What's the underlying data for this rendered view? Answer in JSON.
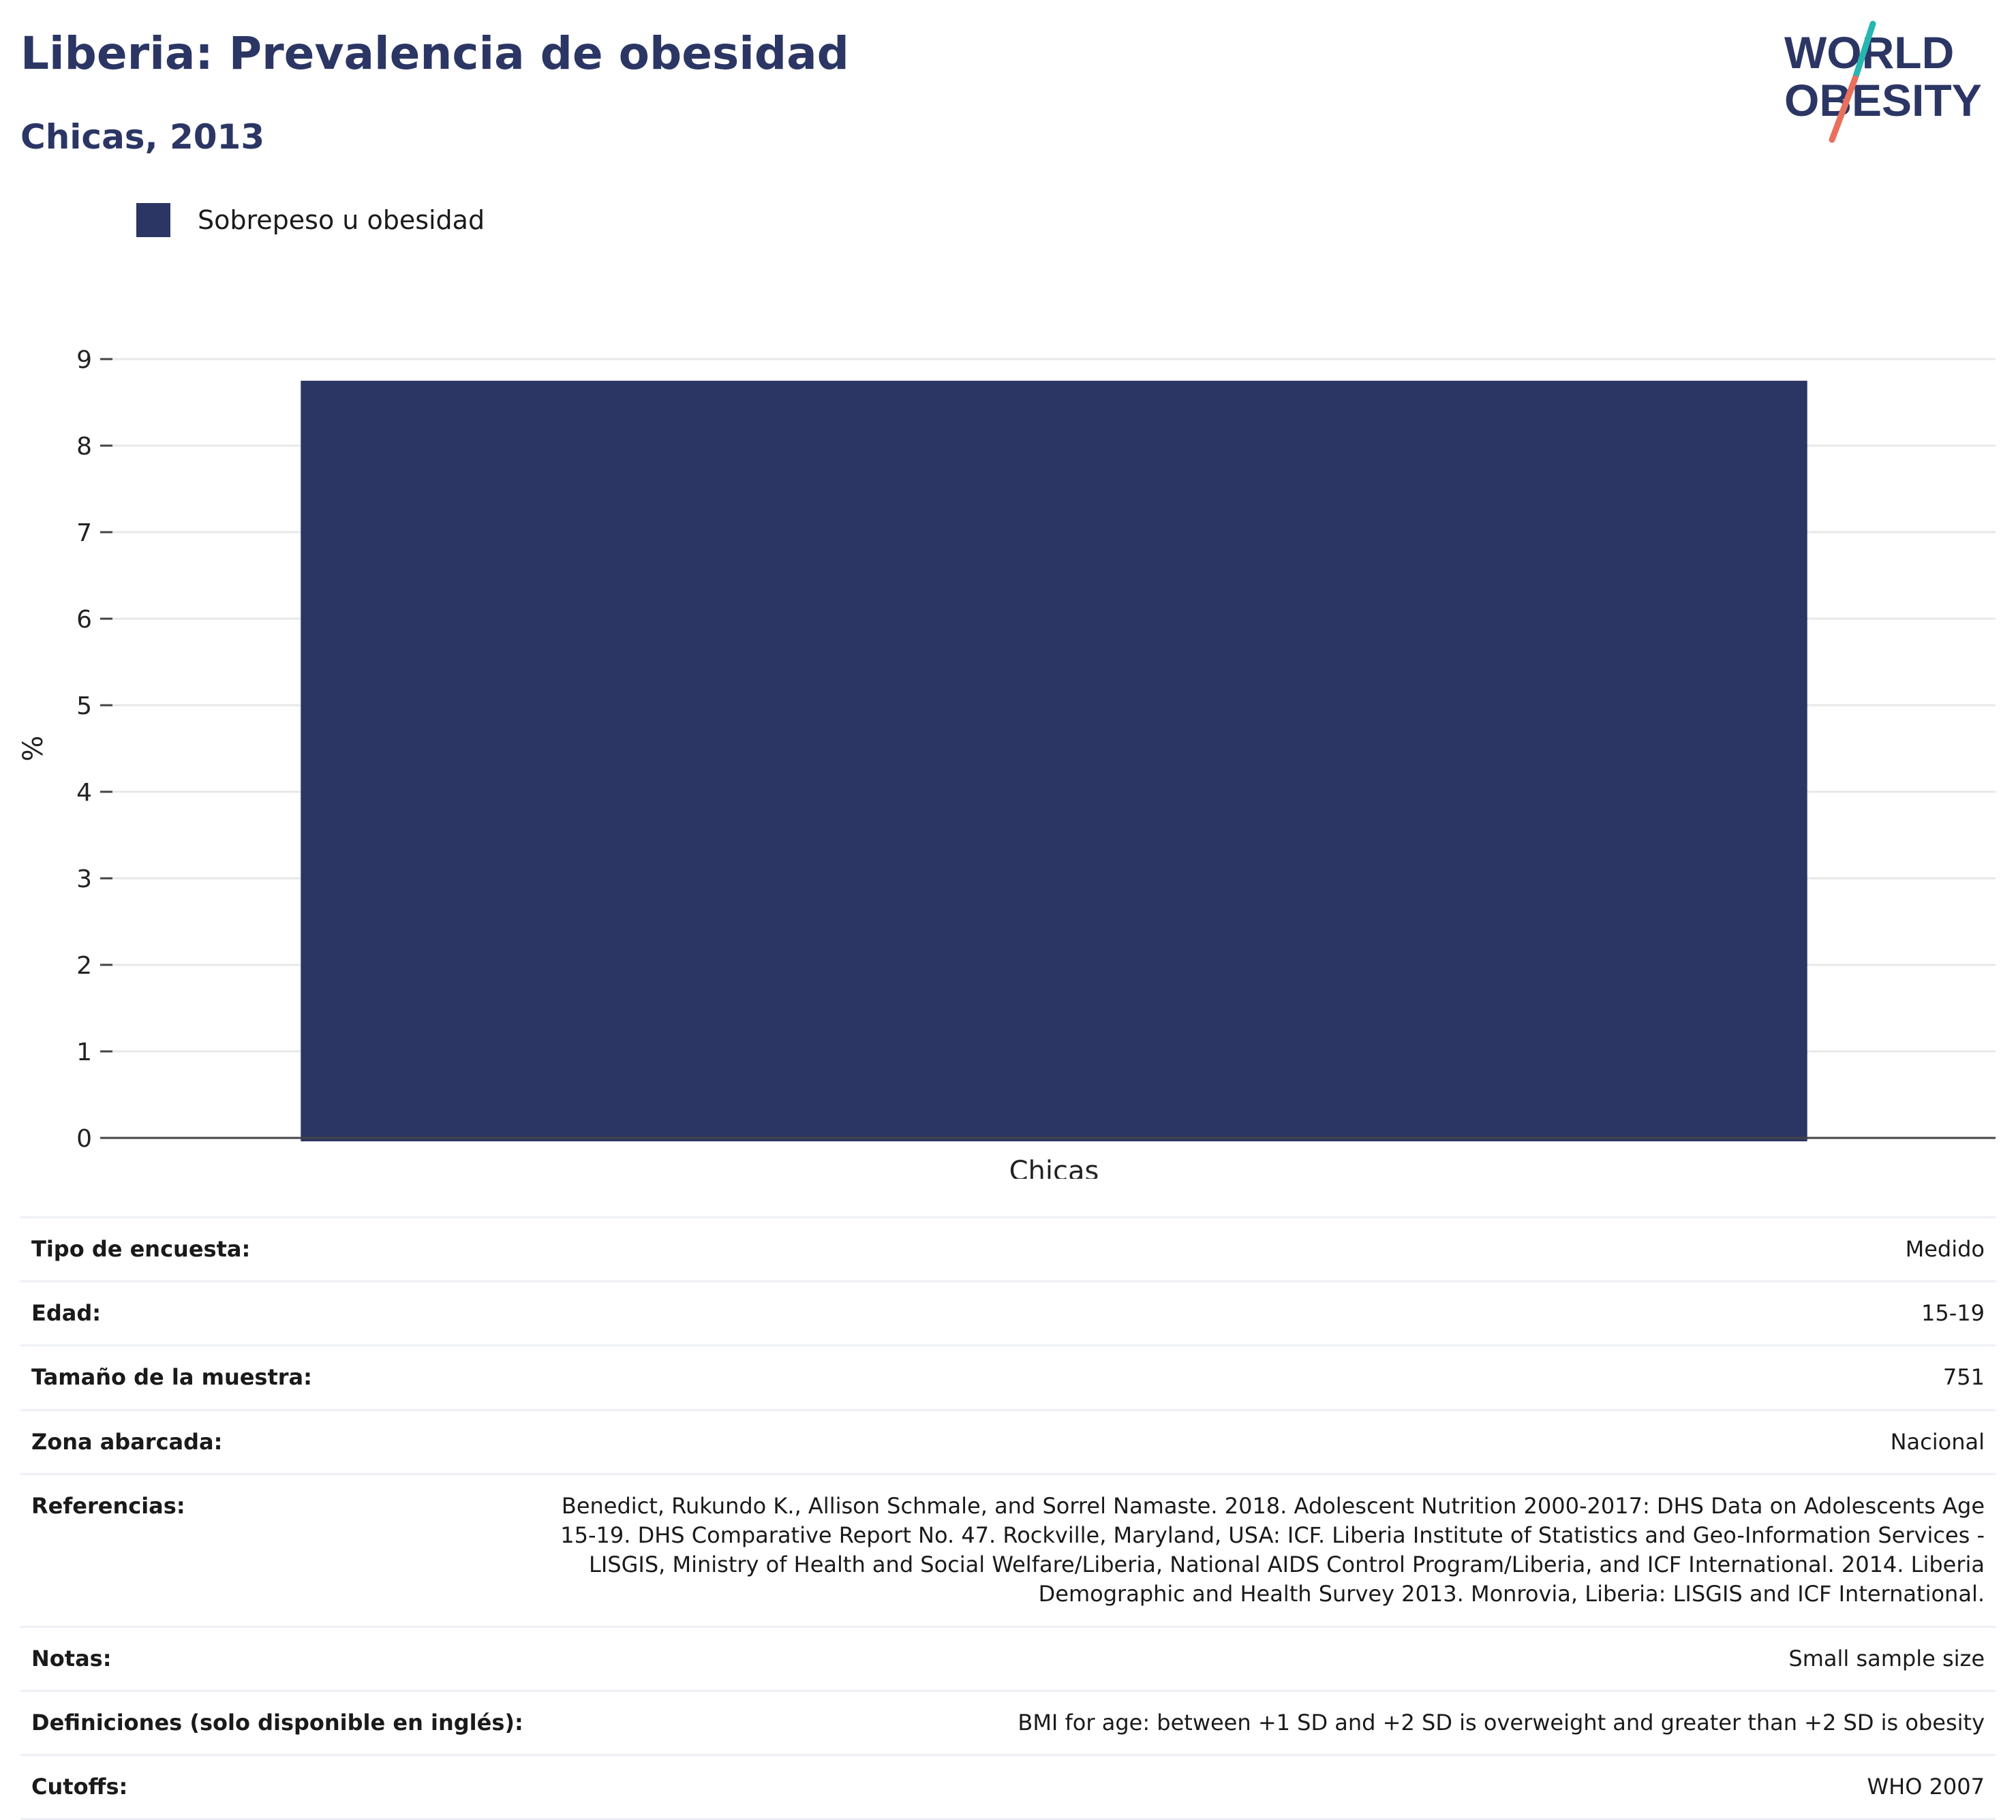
{
  "header": {
    "title": "Liberia: Prevalencia de obesidad",
    "subtitle": "Chicas, 2013"
  },
  "logo": {
    "line1": "WORLD",
    "line2": "OBESITY",
    "colors": {
      "text": "#2b3664",
      "teal": "#27b6b0",
      "coral": "#e8705c"
    }
  },
  "legend": {
    "label": "Sobrepeso u obesidad",
    "color": "#2b3664"
  },
  "chart_data": {
    "type": "bar",
    "categories": [
      "Chicas"
    ],
    "series": [
      {
        "name": "Sobrepeso u obesidad",
        "values": [
          8.75
        ],
        "color": "#2b3664"
      }
    ],
    "title": "Liberia: Prevalencia de obesidad",
    "subtitle": "Chicas, 2013",
    "xlabel": "",
    "ylabel": "%",
    "ylim": [
      0,
      9
    ],
    "yticks": [
      "0",
      "1",
      "2",
      "3",
      "4",
      "5",
      "6",
      "7",
      "8",
      "9"
    ],
    "grid": true,
    "legend_position": "top-left"
  },
  "info_table": [
    {
      "key": "Tipo de encuesta:",
      "value": "Medido"
    },
    {
      "key": "Edad:",
      "value": "15-19"
    },
    {
      "key": "Tamaño de la muestra:",
      "value": "751"
    },
    {
      "key": "Zona abarcada:",
      "value": "Nacional"
    },
    {
      "key": "Referencias:",
      "value": "Benedict, Rukundo K., Allison Schmale, and Sorrel Namaste. 2018. Adolescent Nutrition 2000-2017: DHS Data on Adolescents Age 15-19. DHS Comparative Report No. 47. Rockville, Maryland, USA: ICF. Liberia Institute of Statistics and Geo-Information Services - LISGIS, Ministry of Health and Social Welfare/Liberia, National AIDS Control Program/Liberia, and ICF International. 2014. Liberia Demographic and Health Survey 2013. Monrovia, Liberia: LISGIS and ICF International."
    },
    {
      "key": "Notas:",
      "value": "Small sample size"
    },
    {
      "key": "Definiciones (solo disponible en inglés):",
      "value": "BMI for age: between +1 SD and +2 SD is overweight and greater than +2 SD is obesity"
    },
    {
      "key": "Cutoffs:",
      "value": "WHO 2007"
    }
  ]
}
